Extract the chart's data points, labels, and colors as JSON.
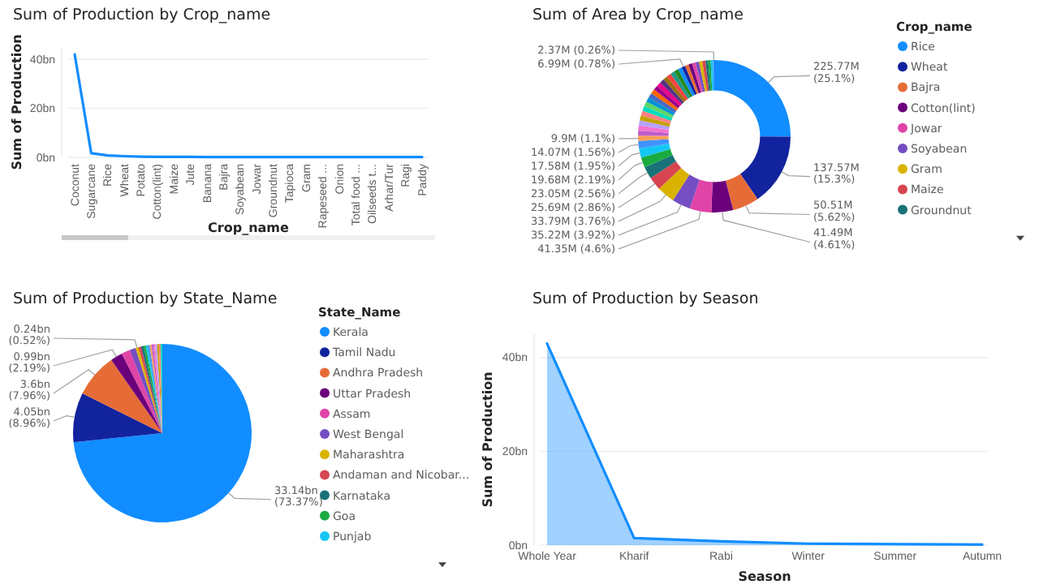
{
  "chart_data": [
    {
      "type": "line",
      "title": "Sum of Production by Crop_name",
      "xlabel": "Crop_name",
      "ylabel": "Sum of Production",
      "color": "#118dff",
      "grid": "y",
      "categories": [
        "Coconut",
        "Sugarcane",
        "Rice",
        "Wheat",
        "Potato",
        "Cotton(lint)",
        "Maize",
        "Jute",
        "Banana",
        "Bajra",
        "Soyabean",
        "Jowar",
        "Groundnut",
        "Tapioca",
        "Gram",
        "Rapeseed ...",
        "Onion",
        "Total food ...",
        "Oilseeds t...",
        "Arhar/Tur",
        "Ragi",
        "Paddy"
      ],
      "values": [
        42,
        1.7,
        0.8,
        0.5,
        0.3,
        0.2,
        0.2,
        0.2,
        0.1,
        0.1,
        0.1,
        0.1,
        0.1,
        0.1,
        0.1,
        0.1,
        0.1,
        0.1,
        0.1,
        0.1,
        0.1,
        0.1
      ],
      "ylim": [
        0,
        45
      ],
      "yticks": [
        {
          "value": 0,
          "label": "0bn"
        },
        {
          "value": 20,
          "label": "20bn"
        },
        {
          "value": 40,
          "label": "40bn"
        }
      ]
    },
    {
      "type": "donut",
      "title": "Sum of Area by Crop_name",
      "legend_title": "Crop_name",
      "legend": "right",
      "categories": [
        "Rice",
        "Wheat",
        "Bajra",
        "Cotton(lint)",
        "Jowar",
        "Soyabean",
        "Gram",
        "Maize",
        "Groundnut",
        null,
        null,
        null,
        null,
        null,
        null,
        null,
        null,
        null,
        null,
        null,
        null,
        null,
        null,
        null,
        null,
        null,
        null,
        null,
        null,
        null,
        null,
        null,
        null,
        null,
        null,
        null,
        null,
        null,
        null,
        null,
        null,
        null
      ],
      "values": [
        225770000,
        137570000,
        50510000,
        41490000,
        41350000,
        35220000,
        33790000,
        25690000,
        23050000,
        19680000,
        17580000,
        14070000,
        9900000,
        9800000,
        9700000,
        9600000,
        9500000,
        9400000,
        9300000,
        9200000,
        9100000,
        9000000,
        8900000,
        8800000,
        8700000,
        8600000,
        8500000,
        8400000,
        8200000,
        8000000,
        7800000,
        6990000,
        6950000,
        6900000,
        6800000,
        6600000,
        6300000,
        6000000,
        5100000,
        4800000,
        4500000,
        2370000
      ],
      "value_labels": [
        "225.77M (25.1%)",
        "137.57M (15.3%)",
        "50.51M (5.62%)",
        "41.49M (4.61%)",
        "41.35M (4.6%)",
        "35.22M (3.92%)",
        "33.79M (3.76%)",
        "25.69M (2.86%)",
        "23.05M (2.56%)",
        "19.68M (2.19%)",
        "17.58M (1.95%)",
        "14.07M (1.56%)",
        "9.9M (1.1%)",
        null,
        null,
        null,
        null,
        null,
        null,
        null,
        null,
        null,
        null,
        null,
        null,
        null,
        null,
        null,
        null,
        null,
        null,
        "6.99M (0.78%)",
        null,
        null,
        null,
        null,
        null,
        null,
        null,
        null,
        null,
        "2.37M (0.26%)"
      ],
      "colors": [
        "#118dff",
        "#12239e",
        "#e66c37",
        "#6b007b",
        "#e044a7",
        "#744ec2",
        "#d9b300",
        "#d64550",
        "#197278",
        "#1aab40",
        "#15c6f4",
        "#4092ff",
        "#ffa058",
        "#be5dc9",
        "#f472d0",
        "#b5a1ff",
        "#c4a200",
        "#ff8080",
        "#00dbbc",
        "#5bd667",
        "#0091d5",
        "#4668c5",
        "#ff6300",
        "#99008a",
        "#ec008c",
        "#533285",
        "#99700a",
        "#ff4141",
        "#1f9a85",
        "#25891c",
        "#118dff",
        "#12239e",
        "#e66c37",
        "#6b007b",
        "#e044a7",
        "#744ec2",
        "#d9b300",
        "#d64550",
        "#197278",
        "#1aab40",
        "#15c6f4",
        "#4092ff"
      ]
    },
    {
      "type": "pie",
      "title": "Sum of Production by State_Name",
      "legend_title": "State_Name",
      "legend": "right",
      "categories": [
        "Kerala",
        "Tamil Nadu",
        "Andhra Pradesh",
        "Uttar Pradesh",
        "Assam",
        "West Bengal",
        "Maharashtra",
        "Andaman and Nicobar...",
        "Karnataka",
        "Goa",
        "Punjab",
        null,
        null,
        null,
        null,
        null,
        null,
        null,
        null
      ],
      "values": [
        33140000000,
        4050000000,
        3600000000,
        990000000,
        700000000,
        500000000,
        240000000,
        220000000,
        200000000,
        180000000,
        160000000,
        160000000,
        150000000,
        150000000,
        150000000,
        150000000,
        150000000,
        140000000,
        140000000
      ],
      "value_labels": [
        "33.14bn (73.37%)",
        "4.05bn (8.96%)",
        "3.6bn (7.96%)",
        "0.99bn (2.19%)",
        null,
        null,
        "0.24bn (0.52%)",
        null,
        null,
        null,
        null,
        null,
        null,
        null,
        null,
        null,
        null,
        null,
        null
      ],
      "colors": [
        "#118dff",
        "#12239e",
        "#e66c37",
        "#6b007b",
        "#e044a7",
        "#744ec2",
        "#d9b300",
        "#d64550",
        "#197278",
        "#1aab40",
        "#15c6f4",
        "#4092ff",
        "#ffa058",
        "#be5dc9",
        "#f472d0",
        "#b5a1ff",
        "#c4a200",
        "#ff8080",
        "#00dbbc"
      ]
    },
    {
      "type": "area",
      "title": "Sum of Production by Season",
      "xlabel": "Season",
      "ylabel": "Sum of Production",
      "color": "#118dff",
      "grid": "y",
      "categories": [
        "Whole Year",
        "Kharif",
        "Rabi",
        "Winter",
        "Summer",
        "Autumn"
      ],
      "values": [
        43,
        1.5,
        0.8,
        0.3,
        0.2,
        0.1
      ],
      "ylim": [
        0,
        45
      ],
      "yticks": [
        {
          "value": 0,
          "label": "0bn"
        },
        {
          "value": 20,
          "label": "20bn"
        },
        {
          "value": 40,
          "label": "40bn"
        }
      ]
    }
  ]
}
